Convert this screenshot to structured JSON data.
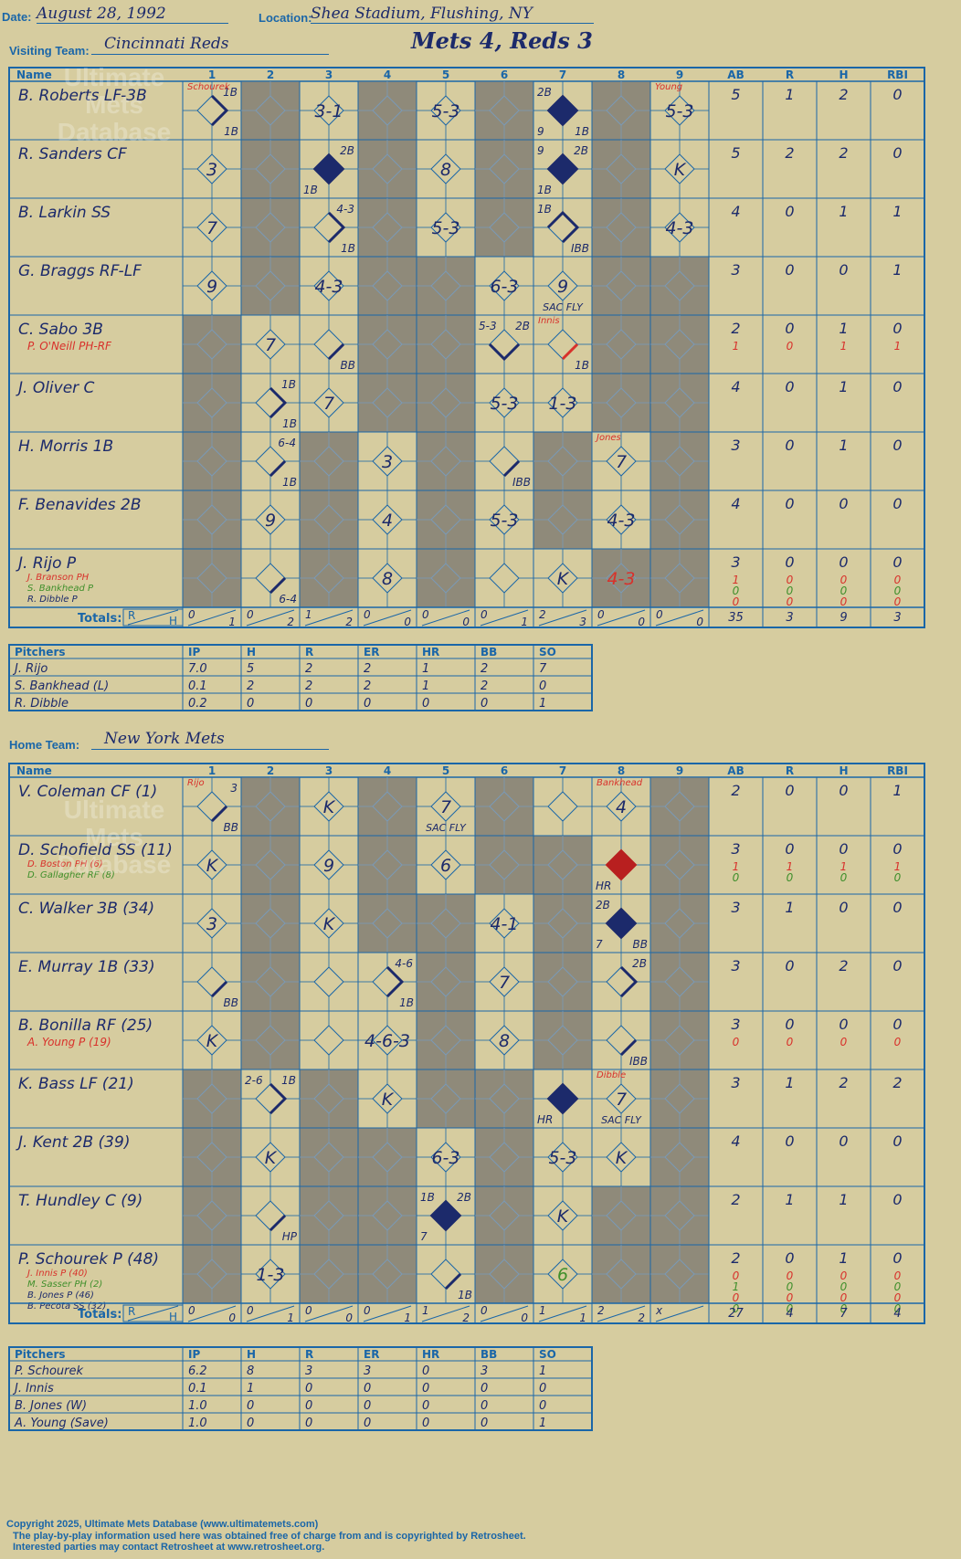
{
  "header": {
    "date_label": "Date:",
    "date_value": "August 28, 1992",
    "location_label": "Location:",
    "location_value": "Shea Stadium, Flushing, NY",
    "visiting_label": "Visiting Team:",
    "visiting_team": "Cincinnati Reds",
    "home_label": "Home Team:",
    "home_team": "New York Mets",
    "game_title": "Mets 4, Reds 3"
  },
  "watermark": "Ultimate Mets Database",
  "columns": {
    "name": "Name",
    "innings": [
      "1",
      "2",
      "3",
      "4",
      "5",
      "6",
      "7",
      "8",
      "9"
    ],
    "stats": [
      "AB",
      "R",
      "H",
      "RBI"
    ]
  },
  "totals_label": "Totals:",
  "rh_labels": [
    "R",
    "H"
  ],
  "visiting": {
    "batters": [
      {
        "name": "B. Roberts LF-3B",
        "subs": [],
        "stats": [
          [
            "5",
            "1",
            "2",
            "0"
          ]
        ]
      },
      {
        "name": "R. Sanders CF",
        "subs": [],
        "stats": [
          [
            "5",
            "2",
            "2",
            "0"
          ]
        ]
      },
      {
        "name": "B. Larkin SS",
        "subs": [],
        "stats": [
          [
            "4",
            "0",
            "1",
            "1"
          ]
        ]
      },
      {
        "name": "G. Braggs RF-LF",
        "subs": [],
        "stats": [
          [
            "3",
            "0",
            "0",
            "1"
          ]
        ]
      },
      {
        "name": "C. Sabo 3B",
        "subs": [
          "P. O'Neill PH-RF"
        ],
        "stats": [
          [
            "2",
            "0",
            "1",
            "0"
          ],
          [
            "1",
            "0",
            "1",
            "1"
          ]
        ]
      },
      {
        "name": "J. Oliver C",
        "subs": [],
        "stats": [
          [
            "4",
            "0",
            "1",
            "0"
          ]
        ]
      },
      {
        "name": "H. Morris 1B",
        "subs": [],
        "stats": [
          [
            "3",
            "0",
            "1",
            "0"
          ]
        ]
      },
      {
        "name": "F. Benavides 2B",
        "subs": [],
        "stats": [
          [
            "4",
            "0",
            "0",
            "0"
          ]
        ]
      },
      {
        "name": "J. Rijo P",
        "subs": [
          "J. Branson PH",
          "S. Bankhead P",
          "R. Dibble P"
        ],
        "stats": [
          [
            "3",
            "0",
            "0",
            "0"
          ],
          [
            "1",
            "0",
            "0",
            "0"
          ],
          [
            "0",
            "0",
            "0",
            "0"
          ],
          [
            "0",
            "0",
            "0",
            "0"
          ]
        ]
      }
    ],
    "innings_rh": [
      [
        "0",
        "1"
      ],
      [
        "0",
        "2"
      ],
      [
        "1",
        "2"
      ],
      [
        "0",
        "0"
      ],
      [
        "0",
        "0"
      ],
      [
        "0",
        "1"
      ],
      [
        "2",
        "3"
      ],
      [
        "0",
        "0"
      ],
      [
        "0",
        "0"
      ]
    ],
    "totals": [
      "35",
      "3",
      "9",
      "3"
    ],
    "shaded": [
      [
        0,
        1,
        0,
        1,
        0,
        1,
        0,
        1,
        0
      ],
      [
        0,
        1,
        0,
        1,
        0,
        1,
        0,
        1,
        0
      ],
      [
        0,
        1,
        0,
        1,
        0,
        1,
        0,
        1,
        0
      ],
      [
        0,
        1,
        0,
        1,
        1,
        0,
        0,
        1,
        1
      ],
      [
        1,
        0,
        0,
        1,
        1,
        0,
        0,
        1,
        1
      ],
      [
        1,
        0,
        0,
        1,
        1,
        0,
        0,
        1,
        1
      ],
      [
        1,
        0,
        1,
        0,
        1,
        0,
        1,
        0,
        1
      ],
      [
        1,
        0,
        1,
        0,
        1,
        0,
        1,
        0,
        1
      ],
      [
        1,
        0,
        1,
        0,
        1,
        0,
        0,
        1,
        1
      ]
    ],
    "plays": [
      {
        "r": 0,
        "c": 0,
        "text": "",
        "notes": [
          [
            "1B",
            "br"
          ],
          [
            "1B",
            "tr"
          ]
        ],
        "path": "fh"
      },
      {
        "r": 0,
        "c": 2,
        "text": "3-1"
      },
      {
        "r": 0,
        "c": 4,
        "text": "5-3"
      },
      {
        "r": 0,
        "c": 6,
        "text": "",
        "notes": [
          [
            "2B",
            "tl"
          ],
          [
            "9",
            "bl"
          ],
          [
            "1B",
            "br"
          ]
        ],
        "fill": "run"
      },
      {
        "r": 0,
        "c": 8,
        "text": "5-3"
      },
      {
        "r": 1,
        "c": 0,
        "text": "3"
      },
      {
        "r": 1,
        "c": 2,
        "text": "",
        "notes": [
          [
            "2B",
            "tr"
          ],
          [
            "1B",
            "bl"
          ]
        ],
        "fill": "run"
      },
      {
        "r": 1,
        "c": 4,
        "text": "8"
      },
      {
        "r": 1,
        "c": 6,
        "text": "",
        "notes": [
          [
            "9",
            "tl"
          ],
          [
            "2B",
            "tr"
          ],
          [
            "1B",
            "bl"
          ]
        ],
        "fill": "run"
      },
      {
        "r": 1,
        "c": 8,
        "text": "K"
      },
      {
        "r": 2,
        "c": 0,
        "text": "7"
      },
      {
        "r": 2,
        "c": 2,
        "text": "",
        "notes": [
          [
            "4-3",
            "tr"
          ],
          [
            "1B",
            "br"
          ]
        ],
        "path": "fh"
      },
      {
        "r": 2,
        "c": 4,
        "text": "5-3"
      },
      {
        "r": 2,
        "c": 6,
        "text": "",
        "notes": [
          [
            "1B",
            "tl"
          ],
          [
            "IBB",
            "br"
          ]
        ],
        "path": "h3"
      },
      {
        "r": 2,
        "c": 8,
        "text": "4-3"
      },
      {
        "r": 3,
        "c": 0,
        "text": "9"
      },
      {
        "r": 3,
        "c": 2,
        "text": "4-3"
      },
      {
        "r": 3,
        "c": 5,
        "text": "6-3"
      },
      {
        "r": 3,
        "c": 6,
        "text": "9",
        "notes": [
          [
            "SAC FLY",
            "bm"
          ]
        ]
      },
      {
        "r": 4,
        "c": 1,
        "text": "7"
      },
      {
        "r": 4,
        "c": 2,
        "text": "",
        "notes": [
          [
            "BB",
            "br"
          ]
        ],
        "path": "b1"
      },
      {
        "r": 4,
        "c": 5,
        "text": "",
        "notes": [
          [
            "5-3",
            "tl"
          ],
          [
            "2B",
            "tr"
          ]
        ],
        "path": "b12"
      },
      {
        "r": 4,
        "c": 6,
        "text": "",
        "notes": [
          [
            "1B",
            "br"
          ]
        ],
        "path": "b1red"
      },
      {
        "r": 5,
        "c": 1,
        "text": "",
        "notes": [
          [
            "1B",
            "tr"
          ],
          [
            "1B",
            "br"
          ]
        ],
        "path": "fh"
      },
      {
        "r": 5,
        "c": 2,
        "text": "7"
      },
      {
        "r": 5,
        "c": 5,
        "text": "5-3"
      },
      {
        "r": 5,
        "c": 6,
        "text": "1-3"
      },
      {
        "r": 6,
        "c": 1,
        "text": "",
        "notes": [
          [
            "6-4",
            "tr"
          ],
          [
            "1B",
            "br"
          ]
        ],
        "path": "b1"
      },
      {
        "r": 6,
        "c": 3,
        "text": "3"
      },
      {
        "r": 6,
        "c": 5,
        "text": "",
        "notes": [
          [
            "IBB",
            "br"
          ]
        ],
        "path": "b1"
      },
      {
        "r": 6,
        "c": 7,
        "text": "7"
      },
      {
        "r": 7,
        "c": 1,
        "text": "9"
      },
      {
        "r": 7,
        "c": 3,
        "text": "4"
      },
      {
        "r": 7,
        "c": 5,
        "text": "5-3"
      },
      {
        "r": 7,
        "c": 7,
        "text": "4-3"
      },
      {
        "r": 8,
        "c": 1,
        "text": "",
        "notes": [
          [
            "6-4",
            "br"
          ]
        ],
        "path": "b1"
      },
      {
        "r": 8,
        "c": 3,
        "text": "8"
      },
      {
        "r": 8,
        "c": 6,
        "text": "K"
      },
      {
        "r": 8,
        "c": 7,
        "text": "4-3",
        "color": "red"
      }
    ],
    "subnotes": [
      {
        "r": 0,
        "c": 0,
        "text": "Schourek"
      },
      {
        "r": 0,
        "c": 8,
        "text": "Young"
      },
      {
        "r": 4,
        "c": 6,
        "text": "Innis"
      },
      {
        "r": 6,
        "c": 7,
        "text": "Jones"
      }
    ]
  },
  "home": {
    "batters": [
      {
        "name": "V. Coleman CF (1)",
        "subs": [],
        "stats": [
          [
            "2",
            "0",
            "0",
            "1"
          ]
        ]
      },
      {
        "name": "D. Schofield SS (11)",
        "subs": [
          "D. Boston PH (6)",
          "D. Gallagher RF (8)"
        ],
        "stats": [
          [
            "3",
            "0",
            "0",
            "0"
          ],
          [
            "1",
            "1",
            "1",
            "1"
          ],
          [
            "0",
            "0",
            "0",
            "0"
          ]
        ]
      },
      {
        "name": "C. Walker 3B (34)",
        "subs": [],
        "stats": [
          [
            "3",
            "1",
            "0",
            "0"
          ]
        ]
      },
      {
        "name": "E. Murray 1B (33)",
        "subs": [],
        "stats": [
          [
            "3",
            "0",
            "2",
            "0"
          ]
        ]
      },
      {
        "name": "B. Bonilla RF (25)",
        "subs": [
          "A. Young P (19)"
        ],
        "stats": [
          [
            "3",
            "0",
            "0",
            "0"
          ],
          [
            "0",
            "0",
            "0",
            "0"
          ]
        ]
      },
      {
        "name": "K. Bass LF (21)",
        "subs": [],
        "stats": [
          [
            "3",
            "1",
            "2",
            "2"
          ]
        ]
      },
      {
        "name": "J. Kent 2B (39)",
        "subs": [],
        "stats": [
          [
            "4",
            "0",
            "0",
            "0"
          ]
        ]
      },
      {
        "name": "T. Hundley C (9)",
        "subs": [],
        "stats": [
          [
            "2",
            "1",
            "1",
            "0"
          ]
        ]
      },
      {
        "name": "P. Schourek P (48)",
        "subs": [
          "J. Innis P (40)",
          "M. Sasser PH (2)",
          "B. Jones P (46)",
          "B. Pecota SS (32)"
        ],
        "stats": [
          [
            "2",
            "0",
            "1",
            "0"
          ],
          [
            "0",
            "0",
            "0",
            "0"
          ],
          [
            "1",
            "0",
            "0",
            "0"
          ],
          [
            "0",
            "0",
            "0",
            "0"
          ],
          [
            "0",
            "0",
            "0",
            "0"
          ]
        ]
      }
    ],
    "innings_rh": [
      [
        "0",
        "0"
      ],
      [
        "0",
        "1"
      ],
      [
        "0",
        "0"
      ],
      [
        "0",
        "1"
      ],
      [
        "1",
        "2"
      ],
      [
        "0",
        "0"
      ],
      [
        "1",
        "1"
      ],
      [
        "2",
        "2"
      ],
      [
        "x",
        ""
      ]
    ],
    "totals": [
      "27",
      "4",
      "7",
      "4"
    ],
    "shaded": [
      [
        0,
        1,
        0,
        1,
        0,
        1,
        0,
        0,
        1
      ],
      [
        0,
        1,
        0,
        1,
        0,
        1,
        1,
        0,
        1
      ],
      [
        0,
        1,
        0,
        1,
        1,
        0,
        1,
        0,
        1
      ],
      [
        0,
        1,
        0,
        0,
        1,
        0,
        1,
        0,
        1
      ],
      [
        0,
        1,
        0,
        0,
        1,
        0,
        1,
        0,
        1
      ],
      [
        1,
        0,
        1,
        0,
        1,
        1,
        0,
        0,
        1
      ],
      [
        1,
        0,
        1,
        1,
        0,
        1,
        0,
        0,
        1
      ],
      [
        1,
        0,
        1,
        1,
        0,
        1,
        0,
        1,
        1
      ],
      [
        1,
        0,
        1,
        1,
        0,
        1,
        0,
        1,
        1
      ]
    ],
    "plays": [
      {
        "r": 0,
        "c": 0,
        "text": "",
        "notes": [
          [
            "3",
            "tr"
          ],
          [
            "BB",
            "br"
          ]
        ],
        "path": "b1"
      },
      {
        "r": 0,
        "c": 2,
        "text": "K"
      },
      {
        "r": 0,
        "c": 4,
        "text": "7",
        "notes": [
          [
            "SAC FLY",
            "bm"
          ]
        ]
      },
      {
        "r": 0,
        "c": 7,
        "text": "4"
      },
      {
        "r": 1,
        "c": 0,
        "text": "K"
      },
      {
        "r": 1,
        "c": 2,
        "text": "9"
      },
      {
        "r": 1,
        "c": 4,
        "text": "6"
      },
      {
        "r": 1,
        "c": 7,
        "text": "",
        "notes": [
          [
            "HR",
            "bl"
          ]
        ],
        "fill": "hr"
      },
      {
        "r": 2,
        "c": 0,
        "text": "3"
      },
      {
        "r": 2,
        "c": 2,
        "text": "K"
      },
      {
        "r": 2,
        "c": 5,
        "text": "4-1"
      },
      {
        "r": 2,
        "c": 7,
        "text": "",
        "notes": [
          [
            "2B",
            "tl"
          ],
          [
            "7",
            "bl"
          ],
          [
            "BB",
            "br"
          ]
        ],
        "fill": "run"
      },
      {
        "r": 3,
        "c": 0,
        "text": "",
        "notes": [
          [
            "BB",
            "br"
          ]
        ],
        "path": "b1"
      },
      {
        "r": 3,
        "c": 3,
        "text": "",
        "notes": [
          [
            "4-6",
            "tr"
          ],
          [
            "1B",
            "br"
          ]
        ],
        "path": "fh"
      },
      {
        "r": 3,
        "c": 5,
        "text": "7"
      },
      {
        "r": 3,
        "c": 7,
        "text": "",
        "notes": [
          [
            "2B",
            "tr"
          ]
        ],
        "path": "h2"
      },
      {
        "r": 4,
        "c": 0,
        "text": "K"
      },
      {
        "r": 4,
        "c": 3,
        "text": "4-6-3"
      },
      {
        "r": 4,
        "c": 5,
        "text": "8"
      },
      {
        "r": 4,
        "c": 7,
        "text": "",
        "notes": [
          [
            "IBB",
            "br"
          ]
        ],
        "path": "b1"
      },
      {
        "r": 5,
        "c": 1,
        "text": "",
        "notes": [
          [
            "2-6",
            "tl"
          ],
          [
            "1B",
            "tr"
          ]
        ],
        "path": "fh"
      },
      {
        "r": 5,
        "c": 3,
        "text": "K"
      },
      {
        "r": 5,
        "c": 6,
        "text": "",
        "notes": [
          [
            "HR",
            "bl"
          ]
        ],
        "fill": "run"
      },
      {
        "r": 5,
        "c": 7,
        "text": "7",
        "notes": [
          [
            "SAC FLY",
            "bm"
          ]
        ]
      },
      {
        "r": 6,
        "c": 1,
        "text": "K"
      },
      {
        "r": 6,
        "c": 4,
        "text": "6-3"
      },
      {
        "r": 6,
        "c": 6,
        "text": "5-3"
      },
      {
        "r": 6,
        "c": 7,
        "text": "K"
      },
      {
        "r": 7,
        "c": 1,
        "text": "",
        "notes": [
          [
            "HP",
            "br"
          ]
        ],
        "path": "b1"
      },
      {
        "r": 7,
        "c": 4,
        "text": "",
        "notes": [
          [
            "1B",
            "tl"
          ],
          [
            "2B",
            "tr"
          ],
          [
            "7",
            "bl"
          ]
        ],
        "fill": "run"
      },
      {
        "r": 7,
        "c": 6,
        "text": "K"
      },
      {
        "r": 8,
        "c": 1,
        "text": "1-3"
      },
      {
        "r": 8,
        "c": 4,
        "text": "",
        "notes": [
          [
            "1B",
            "br"
          ]
        ],
        "path": "b1"
      },
      {
        "r": 8,
        "c": 6,
        "text": "6",
        "color": "green"
      }
    ],
    "subnotes": [
      {
        "r": 0,
        "c": 0,
        "text": "Rijo"
      },
      {
        "r": 0,
        "c": 7,
        "text": "Bankhead"
      },
      {
        "r": 5,
        "c": 7,
        "text": "Dibble"
      }
    ]
  },
  "pitching_headers": [
    "Pitchers",
    "IP",
    "H",
    "R",
    "ER",
    "HR",
    "BB",
    "SO"
  ],
  "visiting_pitchers": [
    [
      "J. Rijo",
      "7.0",
      "5",
      "2",
      "2",
      "1",
      "2",
      "7"
    ],
    [
      "S. Bankhead (L)",
      "0.1",
      "2",
      "2",
      "2",
      "1",
      "2",
      "0"
    ],
    [
      "R. Dibble",
      "0.2",
      "0",
      "0",
      "0",
      "0",
      "0",
      "1"
    ]
  ],
  "home_pitchers": [
    [
      "P. Schourek",
      "6.2",
      "8",
      "3",
      "3",
      "0",
      "3",
      "1"
    ],
    [
      "J. Innis",
      "0.1",
      "1",
      "0",
      "0",
      "0",
      "0",
      "0"
    ],
    [
      "B. Jones (W)",
      "1.0",
      "0",
      "0",
      "0",
      "0",
      "0",
      "0"
    ],
    [
      "A. Young (Save)",
      "1.0",
      "0",
      "0",
      "0",
      "0",
      "0",
      "1"
    ]
  ],
  "footer": {
    "line1": "Copyright 2025, Ultimate Mets Database (www.ultimatemets.com)",
    "line2": "The play-by-play information used here was obtained free of charge from and is copyrighted by Retrosheet.",
    "line3": "Interested parties may contact Retrosheet at www.retrosheet.org."
  },
  "colors": {
    "line": "#1a66a8",
    "ink": "#1c2a6b",
    "shade": "#8f8a7a",
    "paper": "#d6cc9f",
    "red": "#d8312b",
    "green": "#3f8f2b",
    "hr": "#b81f1f"
  }
}
